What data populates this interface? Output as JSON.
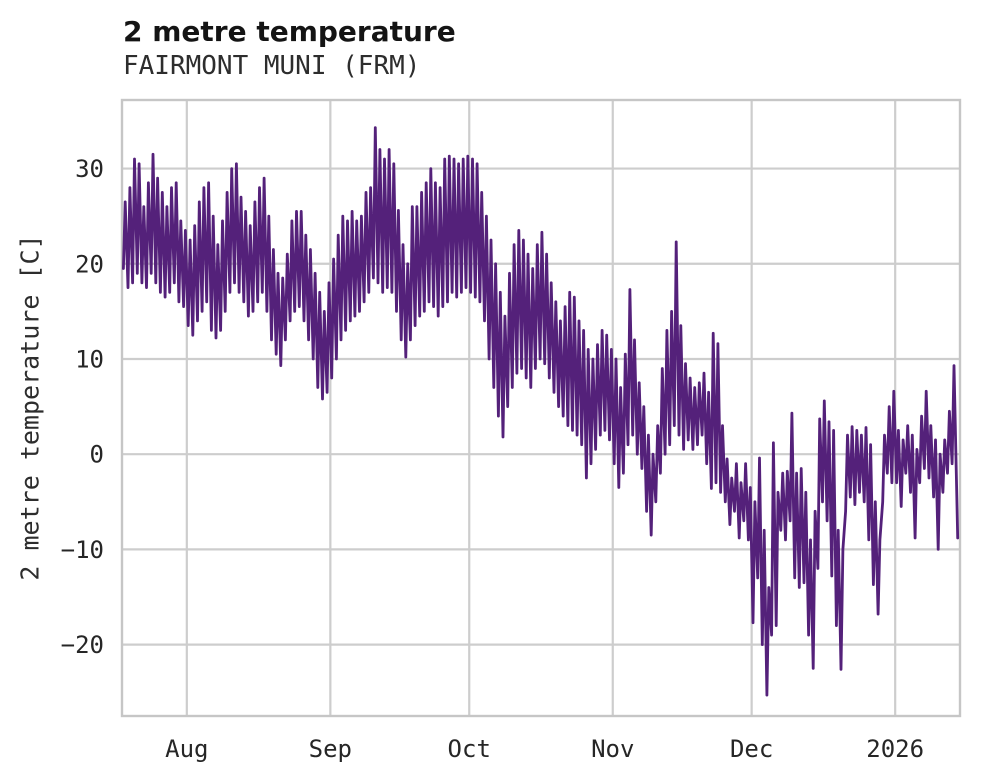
{
  "header": {
    "title": "2 metre temperature",
    "subtitle": "FAIRMONT MUNI (FRM)"
  },
  "axes": {
    "y_label": "2 metre temperature [C]"
  },
  "colors": {
    "line": "#54217a",
    "grid": "#cdcdcd",
    "border": "#c6c6c6",
    "text": "#262626",
    "background": "#ffffff"
  },
  "chart_data": {
    "type": "line",
    "title": "2 metre temperature",
    "subtitle": "FAIRMONT MUNI (FRM)",
    "xlabel": "",
    "ylabel": "2 metre temperature [C]",
    "grid": true,
    "legend": false,
    "x_start_date": "2025-07-18",
    "x_end_date": "2026-01-15",
    "xlim_days": [
      0,
      181
    ],
    "ylim": [
      -27.5,
      37.2
    ],
    "y_ticks": [
      {
        "label": "−20",
        "value": -20
      },
      {
        "label": "−10",
        "value": -10
      },
      {
        "label": "0",
        "value": 0
      },
      {
        "label": "10",
        "value": 10
      },
      {
        "label": "20",
        "value": 20
      },
      {
        "label": "30",
        "value": 30
      }
    ],
    "x_ticks": [
      {
        "label": "Aug",
        "day": 14
      },
      {
        "label": "Sep",
        "day": 45
      },
      {
        "label": "Oct",
        "day": 75
      },
      {
        "label": "Nov",
        "day": 106
      },
      {
        "label": "Dec",
        "day": 136
      },
      {
        "label": "2026",
        "day": 167
      }
    ],
    "sampling": "hourly trace summarized as daily [min,max] pairs, day 0 = 2025-07-18",
    "series": [
      {
        "name": "2 metre temperature [C]",
        "color": "#54217a",
        "daily_min_max": [
          [
            19.5,
            26.5
          ],
          [
            17.5,
            28
          ],
          [
            18,
            31
          ],
          [
            19,
            30.5
          ],
          [
            18,
            26
          ],
          [
            17.5,
            28.5
          ],
          [
            19,
            31.5
          ],
          [
            18,
            29
          ],
          [
            17,
            27.5
          ],
          [
            16.5,
            26
          ],
          [
            17,
            28
          ],
          [
            18,
            28.5
          ],
          [
            16,
            24.5
          ],
          [
            15.5,
            23.5
          ],
          [
            13.5,
            22.5
          ],
          [
            12.5,
            24
          ],
          [
            14,
            26.5
          ],
          [
            15,
            28
          ],
          [
            16,
            28.5
          ],
          [
            13,
            25
          ],
          [
            12.2,
            22
          ],
          [
            13,
            24.5
          ],
          [
            15,
            27.5
          ],
          [
            17,
            30
          ],
          [
            18,
            30.5
          ],
          [
            17,
            27
          ],
          [
            16,
            25.5
          ],
          [
            14.5,
            24
          ],
          [
            15,
            26.5
          ],
          [
            16,
            28
          ],
          [
            17,
            29
          ],
          [
            15,
            25
          ],
          [
            12,
            21.5
          ],
          [
            10.5,
            19
          ],
          [
            9.3,
            18.5
          ],
          [
            12,
            21
          ],
          [
            14,
            24.5
          ],
          [
            15,
            25.5
          ],
          [
            15.5,
            25.5
          ],
          [
            14,
            23
          ],
          [
            12,
            21.5
          ],
          [
            10,
            19
          ],
          [
            7,
            17
          ],
          [
            5.8,
            15
          ],
          [
            6.5,
            18
          ],
          [
            8,
            20.5
          ],
          [
            10,
            23
          ],
          [
            12,
            25
          ],
          [
            13,
            24.5
          ],
          [
            14,
            25.5
          ],
          [
            14.5,
            24.5
          ],
          [
            15,
            25
          ],
          [
            16,
            27.5
          ],
          [
            17,
            28
          ],
          [
            18.5,
            34.3
          ],
          [
            18,
            32
          ],
          [
            17,
            31
          ],
          [
            17.5,
            32
          ],
          [
            17,
            30.5
          ],
          [
            15,
            25.6
          ],
          [
            12,
            22
          ],
          [
            10.2,
            20
          ],
          [
            12,
            26
          ],
          [
            13.5,
            26
          ],
          [
            14.5,
            27.5
          ],
          [
            15,
            28.5
          ],
          [
            16,
            30
          ],
          [
            15.5,
            28.5
          ],
          [
            14.5,
            28
          ],
          [
            15.5,
            31
          ],
          [
            16,
            31.3
          ],
          [
            17,
            31
          ],
          [
            16.5,
            30.5
          ],
          [
            17,
            31
          ],
          [
            17.5,
            31.3
          ],
          [
            17,
            31
          ],
          [
            16.5,
            30.5
          ],
          [
            16,
            27.5
          ],
          [
            14,
            25
          ],
          [
            10,
            22.5
          ],
          [
            7,
            20
          ],
          [
            4,
            17
          ],
          [
            1.8,
            14.5
          ],
          [
            5,
            19
          ],
          [
            7,
            22
          ],
          [
            8.5,
            23.5
          ],
          [
            9,
            22.5
          ],
          [
            8,
            21
          ],
          [
            7,
            19.5
          ],
          [
            9,
            22
          ],
          [
            10,
            23.3
          ],
          [
            9.5,
            21
          ],
          [
            8,
            18
          ],
          [
            6.5,
            16
          ],
          [
            5,
            14
          ],
          [
            4,
            15.5
          ],
          [
            3,
            17
          ],
          [
            2.5,
            16.5
          ],
          [
            2,
            14
          ],
          [
            1,
            13
          ],
          [
            -2.5,
            11
          ],
          [
            -1,
            10
          ],
          [
            0.5,
            11.5
          ],
          [
            2,
            13
          ],
          [
            2.5,
            12.5
          ],
          [
            1.5,
            11
          ],
          [
            -1,
            10
          ],
          [
            -3.5,
            7
          ],
          [
            -2,
            10.5
          ],
          [
            1,
            17.3
          ],
          [
            2,
            12
          ],
          [
            0,
            7.5
          ],
          [
            -1.5,
            5
          ],
          [
            -6,
            2
          ],
          [
            -8.5,
            0
          ],
          [
            -5,
            3
          ],
          [
            -2,
            9
          ],
          [
            0,
            13
          ],
          [
            1,
            15
          ],
          [
            3,
            22.3
          ],
          [
            2,
            13.5
          ],
          [
            0.5,
            9.5
          ],
          [
            1.5,
            8
          ],
          [
            0.5,
            7
          ],
          [
            1,
            7.5
          ],
          [
            2,
            8.5
          ],
          [
            -1,
            6.5
          ],
          [
            -3.6,
            12.7
          ],
          [
            -3,
            11.6
          ],
          [
            -4,
            3
          ],
          [
            -5,
            -0.5
          ],
          [
            -7.4,
            -2.5
          ],
          [
            -6,
            -1
          ],
          [
            -8.8,
            -3
          ],
          [
            -7,
            -1
          ],
          [
            -9,
            -3.5
          ],
          [
            -17.7,
            -5
          ],
          [
            -13,
            -0.4
          ],
          [
            -20,
            -8
          ],
          [
            -25.3,
            -14
          ],
          [
            -19,
            1.2
          ],
          [
            -18,
            -4
          ],
          [
            -8,
            -2
          ],
          [
            -9,
            -1.8
          ],
          [
            -7,
            4.3
          ],
          [
            -13,
            -2
          ],
          [
            -14,
            -1.5
          ],
          [
            -13.5,
            -4
          ],
          [
            -19,
            -9
          ],
          [
            -22.5,
            -6
          ],
          [
            -12,
            3.7
          ],
          [
            -5,
            5.6
          ],
          [
            -7,
            3.4
          ],
          [
            -12.8,
            2.5
          ],
          [
            -18,
            -8
          ],
          [
            -22.6,
            -10
          ],
          [
            -6,
            2
          ],
          [
            -4.5,
            2.9
          ],
          [
            -5.3,
            2.5
          ],
          [
            -4,
            2
          ],
          [
            -5,
            2.8
          ],
          [
            -9,
            1
          ],
          [
            -13.7,
            -5
          ],
          [
            -16.8,
            -9
          ],
          [
            -5,
            2
          ],
          [
            -2,
            5
          ],
          [
            -3,
            6.6
          ],
          [
            -3,
            2.5
          ],
          [
            -5.5,
            1.5
          ],
          [
            -2,
            3
          ],
          [
            -4,
            2
          ],
          [
            -8.8,
            0.5
          ],
          [
            -3,
            4
          ],
          [
            -1.5,
            6.6
          ],
          [
            -2.5,
            3
          ],
          [
            -4.5,
            1.5
          ],
          [
            -10,
            0
          ],
          [
            -4,
            1.5
          ],
          [
            -2,
            4.5
          ],
          [
            -1,
            9.3
          ],
          [
            -8.8,
            -8.8
          ]
        ]
      }
    ]
  }
}
